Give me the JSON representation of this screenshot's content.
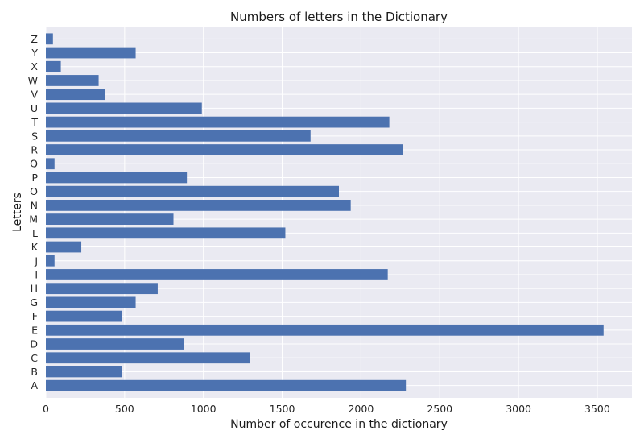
{
  "chart_data": {
    "type": "bar",
    "orientation": "horizontal",
    "title": "Numbers of letters in the Dictionary",
    "xlabel": "Number of occurence in the dictionary",
    "ylabel": "Letters",
    "xlim": [
      0,
      3720
    ],
    "xticks": [
      0,
      500,
      1000,
      1500,
      2000,
      2500,
      3000,
      3500
    ],
    "grid": true,
    "bar_color": "#4c72b0",
    "background_color": "#eaeaf2",
    "categories": [
      "A",
      "B",
      "C",
      "D",
      "E",
      "F",
      "G",
      "H",
      "I",
      "J",
      "K",
      "L",
      "M",
      "N",
      "O",
      "P",
      "Q",
      "R",
      "S",
      "T",
      "U",
      "V",
      "W",
      "X",
      "Y",
      "Z"
    ],
    "values": [
      2285,
      485,
      1295,
      875,
      3540,
      485,
      570,
      710,
      2170,
      55,
      225,
      1520,
      810,
      1935,
      1860,
      895,
      55,
      2265,
      1680,
      2180,
      990,
      375,
      335,
      95,
      570,
      45
    ]
  }
}
